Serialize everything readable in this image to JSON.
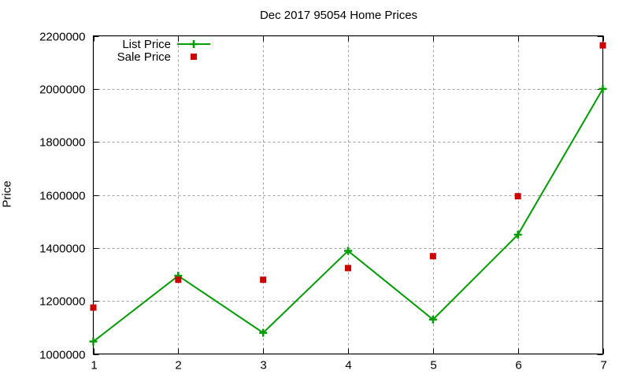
{
  "chart_data": {
    "type": "line",
    "title": "Dec 2017 95054 Home Prices",
    "xlabel": "",
    "ylabel": "Price",
    "x": [
      1,
      2,
      3,
      4,
      5,
      6,
      7
    ],
    "xlim": [
      1,
      7
    ],
    "ylim": [
      1000000,
      2200000
    ],
    "xticks": [
      "1",
      "2",
      "3",
      "4",
      "5",
      "6",
      "7"
    ],
    "yticks": [
      "1000000",
      "1200000",
      "1400000",
      "1600000",
      "1800000",
      "2000000",
      "2200000"
    ],
    "grid": true,
    "legend_position": "top-left",
    "series": [
      {
        "name": "List Price",
        "style": "linespoints",
        "marker": "plus",
        "color": "#009e00",
        "values": [
          1047000,
          1295000,
          1080000,
          1389000,
          1130000,
          1450000,
          2000000
        ]
      },
      {
        "name": "Sale Price",
        "style": "points",
        "marker": "square",
        "color": "#cc0000",
        "values": [
          1175000,
          1280000,
          1280000,
          1324000,
          1369000,
          1595000,
          2164000
        ]
      }
    ]
  }
}
